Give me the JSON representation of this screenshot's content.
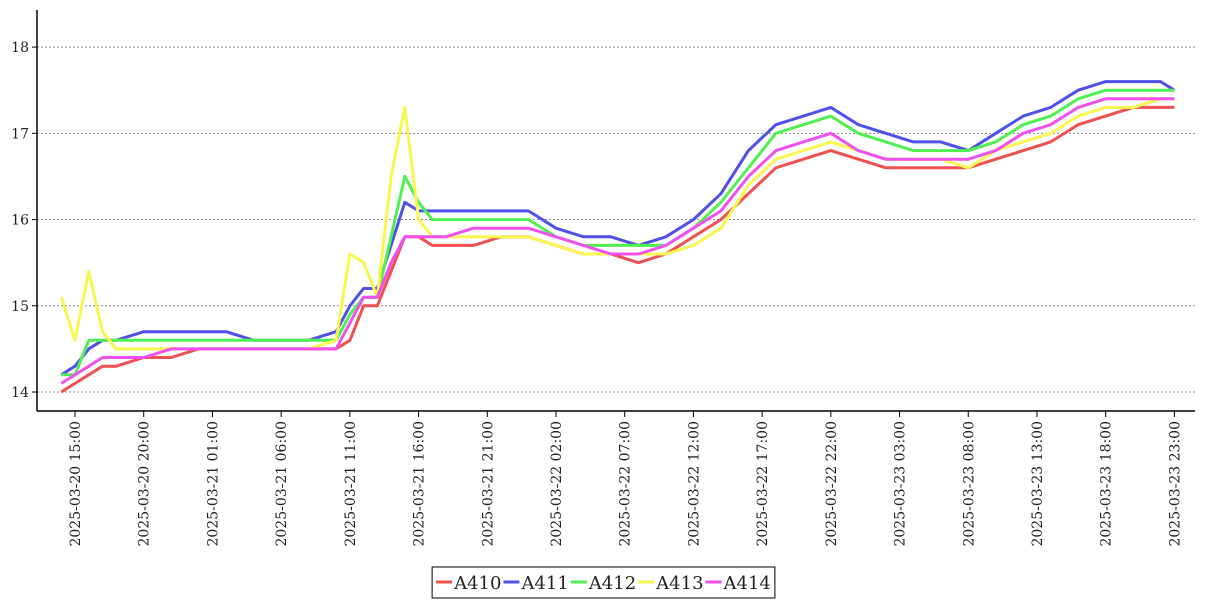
{
  "chart_data": {
    "type": "line",
    "x": [
      "2025-03-20 14:00",
      "2025-03-20 15:00",
      "2025-03-20 16:00",
      "2025-03-20 17:00",
      "2025-03-20 18:00",
      "2025-03-20 20:00",
      "2025-03-20 22:00",
      "2025-03-21 00:00",
      "2025-03-21 02:00",
      "2025-03-21 04:00",
      "2025-03-21 06:00",
      "2025-03-21 08:00",
      "2025-03-21 10:00",
      "2025-03-21 11:00",
      "2025-03-21 12:00",
      "2025-03-21 13:00",
      "2025-03-21 14:00",
      "2025-03-21 15:00",
      "2025-03-21 16:00",
      "2025-03-21 17:00",
      "2025-03-21 18:00",
      "2025-03-21 20:00",
      "2025-03-21 22:00",
      "2025-03-22 00:00",
      "2025-03-22 02:00",
      "2025-03-22 04:00",
      "2025-03-22 06:00",
      "2025-03-22 08:00",
      "2025-03-22 10:00",
      "2025-03-22 12:00",
      "2025-03-22 14:00",
      "2025-03-22 16:00",
      "2025-03-22 18:00",
      "2025-03-22 20:00",
      "2025-03-22 22:00",
      "2025-03-23 00:00",
      "2025-03-23 02:00",
      "2025-03-23 04:00",
      "2025-03-23 06:00",
      "2025-03-23 08:00",
      "2025-03-23 10:00",
      "2025-03-23 12:00",
      "2025-03-23 14:00",
      "2025-03-23 16:00",
      "2025-03-23 18:00",
      "2025-03-23 20:00",
      "2025-03-23 22:00",
      "2025-03-23 23:00"
    ],
    "series": [
      {
        "name": "A410",
        "color": "#f05050",
        "values": [
          14.0,
          14.1,
          14.2,
          14.3,
          14.3,
          14.4,
          14.4,
          14.5,
          14.5,
          14.5,
          14.5,
          14.5,
          14.5,
          14.6,
          15.0,
          15.0,
          15.4,
          15.8,
          15.8,
          15.7,
          15.7,
          15.7,
          15.8,
          15.8,
          15.7,
          15.6,
          15.6,
          15.5,
          15.6,
          15.8,
          16.0,
          16.3,
          16.6,
          16.7,
          16.8,
          16.7,
          16.6,
          16.6,
          16.6,
          16.6,
          16.7,
          16.8,
          16.9,
          17.1,
          17.2,
          17.3,
          17.3,
          17.3
        ]
      },
      {
        "name": "A411",
        "color": "#5050e8",
        "values": [
          14.2,
          14.3,
          14.5,
          14.6,
          14.6,
          14.7,
          14.7,
          14.7,
          14.7,
          14.6,
          14.6,
          14.6,
          14.7,
          15.0,
          15.2,
          15.2,
          15.7,
          16.2,
          16.1,
          16.1,
          16.1,
          16.1,
          16.1,
          16.1,
          15.9,
          15.8,
          15.8,
          15.7,
          15.8,
          16.0,
          16.3,
          16.8,
          17.1,
          17.2,
          17.3,
          17.1,
          17.0,
          16.9,
          16.9,
          16.8,
          17.0,
          17.2,
          17.3,
          17.5,
          17.6,
          17.6,
          17.6,
          17.5
        ]
      },
      {
        "name": "A412",
        "color": "#50f050",
        "values": [
          14.2,
          14.2,
          14.6,
          14.6,
          14.6,
          14.6,
          14.6,
          14.6,
          14.6,
          14.6,
          14.6,
          14.6,
          14.6,
          14.9,
          15.1,
          15.1,
          15.8,
          16.5,
          16.2,
          16.0,
          16.0,
          16.0,
          16.0,
          16.0,
          15.8,
          15.7,
          15.7,
          15.7,
          15.7,
          15.9,
          16.2,
          16.6,
          17.0,
          17.1,
          17.2,
          17.0,
          16.9,
          16.8,
          16.8,
          16.8,
          16.9,
          17.1,
          17.2,
          17.4,
          17.5,
          17.5,
          17.5,
          17.5
        ]
      },
      {
        "name": "A413",
        "color": "#f8f850",
        "values": [
          15.1,
          14.6,
          15.4,
          14.7,
          14.5,
          14.5,
          14.5,
          14.5,
          14.5,
          14.5,
          14.5,
          14.5,
          14.6,
          15.6,
          15.5,
          15.1,
          16.5,
          17.3,
          16.0,
          15.8,
          15.8,
          15.8,
          15.8,
          15.8,
          15.7,
          15.6,
          15.6,
          15.6,
          15.6,
          15.7,
          15.9,
          16.4,
          16.7,
          16.8,
          16.9,
          16.8,
          16.7,
          16.7,
          16.7,
          16.6,
          16.8,
          16.9,
          17.0,
          17.2,
          17.3,
          17.3,
          17.4,
          17.4
        ]
      },
      {
        "name": "A414",
        "color": "#f050f0",
        "values": [
          14.1,
          14.2,
          14.3,
          14.4,
          14.4,
          14.4,
          14.5,
          14.5,
          14.5,
          14.5,
          14.5,
          14.5,
          14.5,
          14.8,
          15.1,
          15.1,
          15.5,
          15.8,
          15.8,
          15.8,
          15.8,
          15.9,
          15.9,
          15.9,
          15.8,
          15.7,
          15.6,
          15.6,
          15.7,
          15.9,
          16.1,
          16.5,
          16.8,
          16.9,
          17.0,
          16.8,
          16.7,
          16.7,
          16.7,
          16.7,
          16.8,
          17.0,
          17.1,
          17.3,
          17.4,
          17.4,
          17.4,
          17.4
        ]
      }
    ],
    "xlim": [
      "2025-03-20 12:14",
      "2025-03-24 00:30"
    ],
    "xticks": [
      "2025-03-20 15:00",
      "2025-03-20 20:00",
      "2025-03-21 01:00",
      "2025-03-21 06:00",
      "2025-03-21 11:00",
      "2025-03-21 16:00",
      "2025-03-21 21:00",
      "2025-03-22 02:00",
      "2025-03-22 07:00",
      "2025-03-22 12:00",
      "2025-03-22 17:00",
      "2025-03-22 22:00",
      "2025-03-23 03:00",
      "2025-03-23 08:00",
      "2025-03-23 13:00",
      "2025-03-23 18:00",
      "2025-03-23 23:00"
    ],
    "ylim": [
      13.78,
      18.43
    ],
    "yticks": [
      14,
      15,
      16,
      17,
      18
    ],
    "grid": true,
    "legend": "bottom"
  }
}
